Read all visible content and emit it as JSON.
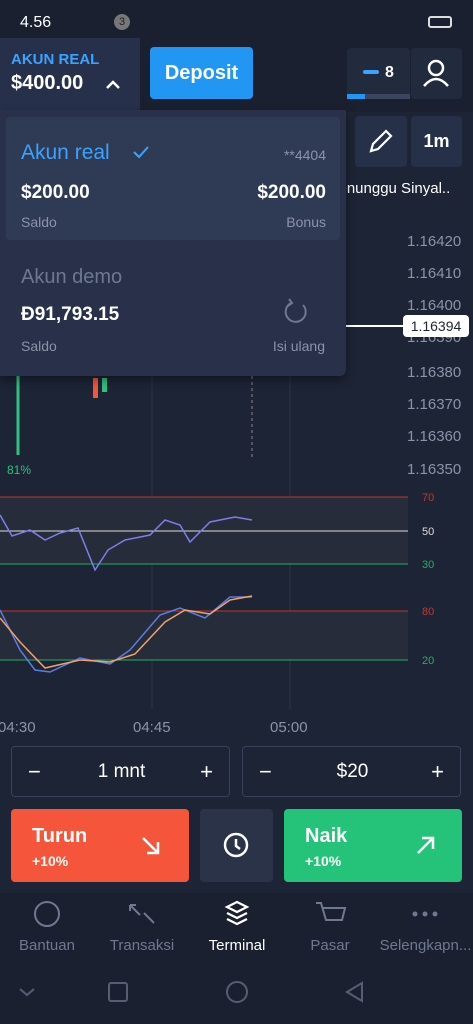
{
  "status": {
    "time": "4.56",
    "badge": "3"
  },
  "header": {
    "account_label": "AKUN REAL",
    "balance": "$400.00",
    "deposit": "Deposit",
    "indicators": "8"
  },
  "toolbar": {
    "timeframe": "1m"
  },
  "signal": "Menunggu Sinyal..",
  "dropdown": {
    "real": {
      "name": "Akun real",
      "mask": "**4404",
      "balance": "$200.00",
      "balance_label": "Saldo",
      "bonus": "$200.00",
      "bonus_label": "Bonus"
    },
    "demo": {
      "name": "Akun demo",
      "balance": "Đ91,793.15",
      "balance_label": "Saldo",
      "refill_label": "Isi ulang"
    }
  },
  "chart": {
    "price_labels": [
      "1.16420",
      "1.16410",
      "1.16400",
      "1.16390",
      "1.16380",
      "1.16370",
      "1.16360",
      "1.16350"
    ],
    "current_price": "1.16394",
    "percent": "81%",
    "rsi_levels": [
      "70",
      "50",
      "30"
    ],
    "stoch_levels": [
      "80",
      "20"
    ],
    "time_labels": [
      "04:30",
      "04:45",
      "05:00"
    ]
  },
  "controls": {
    "duration": "1 mnt",
    "amount": "$20",
    "minus": "−",
    "plus": "+"
  },
  "trade": {
    "down": {
      "label": "Turun",
      "payout": "+10%"
    },
    "up": {
      "label": "Naik",
      "payout": "+10%"
    }
  },
  "nav": [
    "Bantuan",
    "Transaksi",
    "Terminal",
    "Pasar",
    "Selengkapn..."
  ]
}
